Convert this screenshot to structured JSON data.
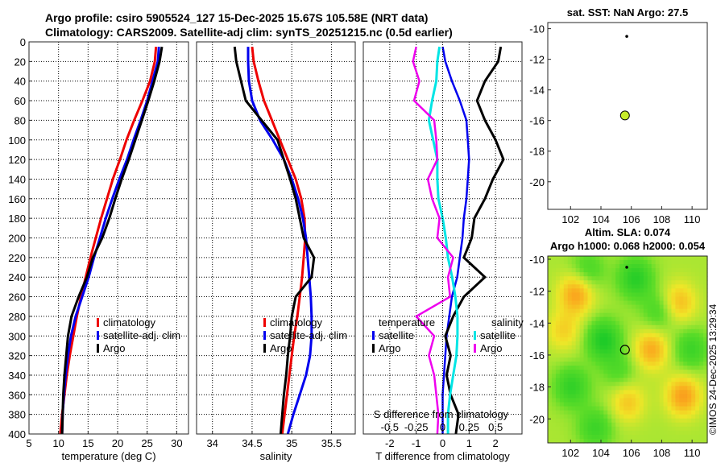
{
  "title": {
    "line1": "Argo profile: csiro 5905524_127 15-Dec-2025 15.67S 105.58E (NRT data)",
    "line2": "Climatology: CARS2009. Satellite-adj clim: synTS_20251215.nc (0.5d earlier)"
  },
  "copyright": "©IMOS 24-Dec-2025 13:29:34",
  "colors": {
    "climatology": "#ee0000",
    "satellite": "#0000ee",
    "argo": "#000000",
    "satellite_s": "#00e5e5",
    "argo_s": "#ee00ee"
  },
  "chart_data": [
    {
      "type": "line",
      "name": "temperature",
      "xlabel": "temperature (deg C)",
      "ylabel": "",
      "xlim": [
        5,
        32
      ],
      "ylim": [
        400,
        0
      ],
      "xticks": [
        "5",
        "10",
        "15",
        "20",
        "25",
        "30"
      ],
      "yticks": [
        "0",
        "20",
        "40",
        "60",
        "80",
        "100",
        "120",
        "140",
        "160",
        "180",
        "200",
        "220",
        "240",
        "260",
        "280",
        "300",
        "320",
        "340",
        "360",
        "380",
        "400"
      ],
      "legend": [
        "climatology",
        "satellite-adj. clim",
        "Argo"
      ],
      "series": [
        {
          "name": "climatology",
          "depth": [
            5,
            20,
            40,
            60,
            80,
            100,
            120,
            140,
            160,
            180,
            200,
            220,
            240,
            260,
            280,
            300,
            320,
            340,
            360,
            380,
            400
          ],
          "values": [
            26.5,
            26.3,
            25.5,
            24.2,
            22.8,
            21.5,
            20.4,
            19.2,
            18.2,
            17.2,
            16.3,
            15.4,
            14.6,
            13.8,
            13.1,
            12.5,
            11.9,
            11.4,
            11.0,
            10.6,
            10.3
          ]
        },
        {
          "name": "satellite-adj. clim",
          "depth": [
            5,
            20,
            40,
            60,
            80,
            100,
            120,
            140,
            160,
            180,
            200,
            220,
            240,
            260,
            280,
            300,
            320,
            340,
            360,
            380,
            400
          ],
          "values": [
            27.0,
            26.8,
            25.9,
            25.0,
            23.9,
            22.7,
            21.6,
            20.3,
            19.1,
            18.0,
            17.0,
            16.0,
            15.1,
            14.0,
            12.9,
            12.1,
            11.6,
            11.2,
            10.9,
            10.7,
            10.6
          ]
        },
        {
          "name": "Argo",
          "depth": [
            5,
            20,
            40,
            60,
            80,
            100,
            120,
            140,
            160,
            180,
            200,
            220,
            240,
            260,
            280,
            300,
            320,
            340,
            360,
            380,
            400
          ],
          "values": [
            27.5,
            27.1,
            26.2,
            25.2,
            24.1,
            23.0,
            21.9,
            20.7,
            19.6,
            18.6,
            17.4,
            15.8,
            14.8,
            13.4,
            12.2,
            11.6,
            11.3,
            11.0,
            10.8,
            10.7,
            10.6
          ]
        }
      ]
    },
    {
      "type": "line",
      "name": "salinity",
      "xlabel": "salinity",
      "xlim": [
        33.8,
        35.8
      ],
      "ylim": [
        400,
        0
      ],
      "xticks": [
        "34",
        "34.5",
        "35",
        "35.5"
      ],
      "legend": [
        "climatology",
        "satellite-adj. clim",
        "Argo"
      ],
      "series": [
        {
          "name": "climatology",
          "depth": [
            5,
            20,
            40,
            60,
            80,
            100,
            120,
            140,
            160,
            180,
            200,
            220,
            240,
            260,
            280,
            300,
            320,
            340,
            360,
            380,
            400
          ],
          "values": [
            34.5,
            34.52,
            34.58,
            34.65,
            34.75,
            34.85,
            34.95,
            35.05,
            35.12,
            35.16,
            35.17,
            35.15,
            35.13,
            35.1,
            35.07,
            35.03,
            35.0,
            34.97,
            34.94,
            34.91,
            34.88
          ]
        },
        {
          "name": "satellite-adj. clim",
          "depth": [
            5,
            20,
            40,
            60,
            80,
            100,
            120,
            140,
            160,
            180,
            200,
            220,
            240,
            260,
            280,
            300,
            320,
            340,
            360,
            380,
            400
          ],
          "values": [
            34.45,
            34.45,
            34.46,
            34.5,
            34.6,
            34.76,
            34.9,
            35.0,
            35.08,
            35.14,
            35.18,
            35.2,
            35.22,
            35.24,
            35.25,
            35.25,
            35.23,
            35.18,
            35.1,
            35.02,
            34.95
          ]
        },
        {
          "name": "Argo",
          "depth": [
            5,
            20,
            40,
            60,
            80,
            100,
            120,
            140,
            160,
            180,
            200,
            220,
            240,
            260,
            280,
            300,
            320,
            340,
            360,
            380,
            400
          ],
          "values": [
            34.28,
            34.3,
            34.36,
            34.42,
            34.62,
            34.82,
            34.9,
            34.98,
            35.05,
            35.1,
            35.15,
            35.28,
            35.25,
            35.05,
            35.0,
            34.98,
            34.95,
            34.93,
            34.9,
            34.88,
            34.86
          ]
        }
      ]
    },
    {
      "type": "line",
      "name": "difference",
      "xlabel": "T difference from climatology",
      "top_label": "S difference from climatology",
      "xlim": [
        -3,
        3
      ],
      "ylim": [
        400,
        0
      ],
      "xticks": [
        "-2",
        "-1",
        "0",
        "1",
        "2"
      ],
      "s_ticks": [
        "-0.5",
        "-0.25",
        "0",
        "0.25",
        "0.5"
      ],
      "legend_t": {
        "header": "temperature",
        "items": [
          "satellite",
          "Argo"
        ]
      },
      "legend_s": {
        "header": "salinity",
        "items": [
          "satellite",
          "Argo"
        ]
      },
      "series": [
        {
          "name": "T satellite",
          "depth": [
            5,
            20,
            40,
            60,
            80,
            100,
            120,
            140,
            160,
            180,
            200,
            220,
            240,
            260,
            280,
            300,
            320,
            340,
            360,
            380,
            400
          ],
          "values": [
            0.0,
            0.1,
            0.35,
            0.65,
            0.9,
            0.95,
            1.0,
            0.95,
            0.9,
            0.8,
            0.75,
            0.65,
            0.55,
            0.35,
            0.25,
            0.15,
            0.1,
            0.05,
            0.0,
            0.0,
            0.0
          ]
        },
        {
          "name": "T Argo",
          "depth": [
            5,
            20,
            40,
            60,
            80,
            100,
            120,
            140,
            160,
            180,
            200,
            220,
            240,
            260,
            280,
            300,
            320,
            340,
            360,
            380,
            400
          ],
          "values": [
            2.2,
            2.1,
            1.6,
            1.3,
            1.6,
            2.0,
            2.3,
            1.9,
            1.6,
            1.2,
            1.1,
            0.8,
            1.6,
            0.8,
            0.4,
            0.1,
            0.3,
            0.15,
            0.3,
            0.6,
            0.5
          ]
        },
        {
          "name": "S satellite",
          "depth": [
            5,
            20,
            40,
            60,
            80,
            100,
            120,
            140,
            160,
            180,
            200,
            220,
            240,
            260,
            280,
            300,
            320,
            340,
            360,
            380,
            400
          ],
          "values": [
            -0.03,
            -0.05,
            -0.06,
            -0.1,
            -0.13,
            -0.09,
            -0.05,
            -0.05,
            -0.04,
            0.0,
            0.03,
            0.05,
            0.09,
            0.12,
            0.14,
            0.14,
            0.13,
            0.1,
            0.07,
            0.05,
            0.05
          ]
        },
        {
          "name": "S Argo",
          "depth": [
            5,
            20,
            40,
            60,
            80,
            100,
            120,
            140,
            160,
            180,
            200,
            220,
            240,
            260,
            280,
            300,
            320,
            340,
            360,
            380,
            400
          ],
          "values": [
            -0.25,
            -0.28,
            -0.22,
            -0.27,
            -0.08,
            -0.06,
            -0.05,
            -0.14,
            -0.1,
            -0.03,
            -0.05,
            0.1,
            0.05,
            0.07,
            -0.25,
            -0.08,
            -0.13,
            -0.08,
            -0.06,
            -0.04,
            -0.05
          ]
        }
      ]
    },
    {
      "type": "scatter",
      "name": "sst_map",
      "title": "sat. SST: NaN Argo: 27.5",
      "xlim": [
        100.5,
        111.0
      ],
      "ylim": [
        -21.8,
        -9.6
      ],
      "xticks": [
        "102",
        "104",
        "106",
        "108",
        "110"
      ],
      "yticks": [
        "-10",
        "-12",
        "-14",
        "-16",
        "-18",
        "-20"
      ],
      "points": [
        {
          "label": "Argo position",
          "x": 105.58,
          "y": -15.67
        }
      ],
      "track": [
        {
          "x": 105.7,
          "y": -10.5
        }
      ]
    },
    {
      "type": "heatmap",
      "name": "sla_map",
      "title_line1": "Altim. SLA: 0.074",
      "title_line2": "Argo h1000: 0.068 h2000: 0.054",
      "xlim": [
        100.5,
        111.0
      ],
      "ylim": [
        -21.5,
        -9.8
      ],
      "xticks": [
        "102",
        "104",
        "106",
        "108",
        "110"
      ],
      "yticks": [
        "-10",
        "-12",
        "-14",
        "-16",
        "-18",
        "-20"
      ],
      "points": [
        {
          "label": "Argo position",
          "x": 105.58,
          "y": -15.67
        }
      ],
      "track": [
        {
          "x": 105.7,
          "y": -10.5
        }
      ]
    }
  ]
}
